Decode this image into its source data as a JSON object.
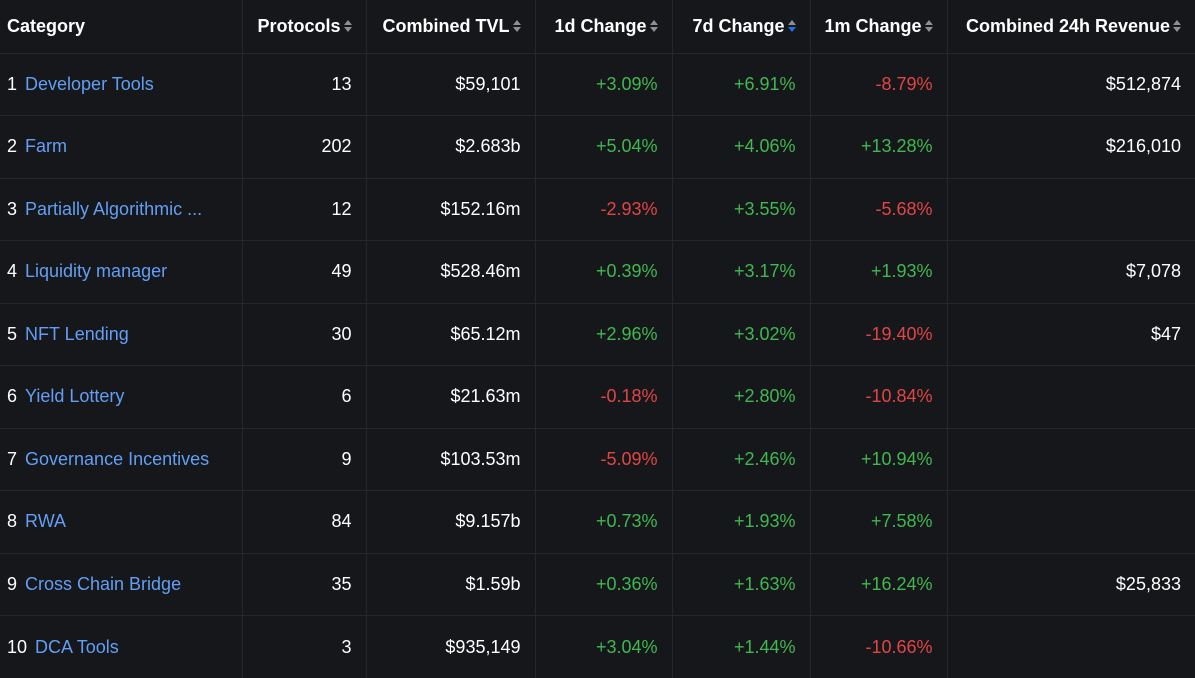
{
  "columns": [
    {
      "key": "category",
      "label": "Category",
      "sortable": false
    },
    {
      "key": "protocols",
      "label": "Protocols",
      "sortable": true
    },
    {
      "key": "combined_tvl",
      "label": "Combined TVL",
      "sortable": true
    },
    {
      "key": "change_1d",
      "label": "1d Change",
      "sortable": true
    },
    {
      "key": "change_7d",
      "label": "7d Change",
      "sortable": true,
      "active_sort": "desc"
    },
    {
      "key": "change_1m",
      "label": "1m Change",
      "sortable": true
    },
    {
      "key": "revenue_24h",
      "label": "Combined 24h Revenue",
      "sortable": true
    }
  ],
  "colors": {
    "background": "#16171b",
    "link": "#629ff4",
    "positive": "#3fb84f",
    "negative": "#e14545",
    "sort_active": "#2172e5",
    "sort_inactive": "#8e8f95"
  },
  "icons": {
    "sort": "sort-icon"
  },
  "rows": [
    {
      "rank": "1",
      "category": "Developer Tools",
      "protocols": "13",
      "combined_tvl": "$59,101",
      "change_1d": "+3.09%",
      "change_7d": "+6.91%",
      "change_1m": "-8.79%",
      "revenue_24h": "$512,874"
    },
    {
      "rank": "2",
      "category": "Farm",
      "protocols": "202",
      "combined_tvl": "$2.683b",
      "change_1d": "+5.04%",
      "change_7d": "+4.06%",
      "change_1m": "+13.28%",
      "revenue_24h": "$216,010"
    },
    {
      "rank": "3",
      "category": "Partially Algorithmic ...",
      "protocols": "12",
      "combined_tvl": "$152.16m",
      "change_1d": "-2.93%",
      "change_7d": "+3.55%",
      "change_1m": "-5.68%",
      "revenue_24h": ""
    },
    {
      "rank": "4",
      "category": "Liquidity manager",
      "protocols": "49",
      "combined_tvl": "$528.46m",
      "change_1d": "+0.39%",
      "change_7d": "+3.17%",
      "change_1m": "+1.93%",
      "revenue_24h": "$7,078"
    },
    {
      "rank": "5",
      "category": "NFT Lending",
      "protocols": "30",
      "combined_tvl": "$65.12m",
      "change_1d": "+2.96%",
      "change_7d": "+3.02%",
      "change_1m": "-19.40%",
      "revenue_24h": "$47"
    },
    {
      "rank": "6",
      "category": "Yield Lottery",
      "protocols": "6",
      "combined_tvl": "$21.63m",
      "change_1d": "-0.18%",
      "change_7d": "+2.80%",
      "change_1m": "-10.84%",
      "revenue_24h": ""
    },
    {
      "rank": "7",
      "category": "Governance Incentives",
      "protocols": "9",
      "combined_tvl": "$103.53m",
      "change_1d": "-5.09%",
      "change_7d": "+2.46%",
      "change_1m": "+10.94%",
      "revenue_24h": ""
    },
    {
      "rank": "8",
      "category": "RWA",
      "protocols": "84",
      "combined_tvl": "$9.157b",
      "change_1d": "+0.73%",
      "change_7d": "+1.93%",
      "change_1m": "+7.58%",
      "revenue_24h": ""
    },
    {
      "rank": "9",
      "category": "Cross Chain Bridge",
      "protocols": "35",
      "combined_tvl": "$1.59b",
      "change_1d": "+0.36%",
      "change_7d": "+1.63%",
      "change_1m": "+16.24%",
      "revenue_24h": "$25,833"
    },
    {
      "rank": "10",
      "category": "DCA Tools",
      "protocols": "3",
      "combined_tvl": "$935,149",
      "change_1d": "+3.04%",
      "change_7d": "+1.44%",
      "change_1m": "-10.66%",
      "revenue_24h": ""
    }
  ]
}
